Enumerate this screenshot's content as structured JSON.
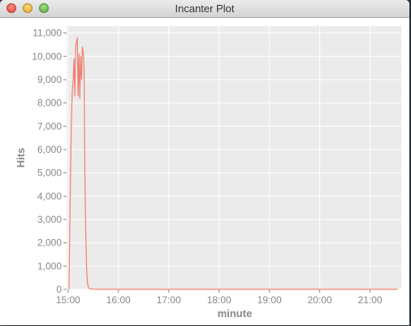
{
  "window": {
    "title": "Incanter Plot"
  },
  "colors": {
    "plot_background": "#ebebeb",
    "grid": "#ffffff",
    "series": "#f08070",
    "axis_text": "#888888"
  },
  "chart_data": {
    "type": "line",
    "xlabel": "minute",
    "ylabel": "Hits",
    "xlim": [
      14.97,
      21.62
    ],
    "ylim": [
      0,
      11300
    ],
    "xticks": [
      15,
      16,
      17,
      18,
      19,
      20,
      21
    ],
    "xtick_labels": [
      "15:00",
      "16:00",
      "17:00",
      "18:00",
      "19:00",
      "20:00",
      "21:00"
    ],
    "yticks": [
      0,
      1000,
      2000,
      3000,
      4000,
      5000,
      6000,
      7000,
      8000,
      9000,
      10000,
      11000
    ],
    "ytick_labels": [
      "0",
      "1,000",
      "2,000",
      "3,000",
      "4,000",
      "5,000",
      "6,000",
      "7,000",
      "8,000",
      "9,000",
      "10,000",
      "11,000"
    ],
    "grid": true,
    "series": [
      {
        "name": "Hits",
        "x": [
          15.017,
          15.05,
          15.067,
          15.083,
          15.1,
          15.117,
          15.133,
          15.15,
          15.167,
          15.183,
          15.2,
          15.217,
          15.233,
          15.25,
          15.267,
          15.283,
          15.3,
          15.317,
          15.333,
          15.35,
          15.367,
          15.383,
          15.4,
          15.417,
          15.433,
          15.45,
          15.5,
          15.6,
          16.0,
          17.0,
          18.0,
          19.0,
          20.0,
          21.0,
          21.55
        ],
        "y": [
          0,
          5300,
          7400,
          8500,
          9000,
          9900,
          8300,
          10400,
          10600,
          10800,
          8300,
          10100,
          8200,
          10000,
          9000,
          10400,
          10200,
          9500,
          5000,
          2500,
          900,
          300,
          120,
          60,
          30,
          20,
          10,
          5,
          3,
          2,
          2,
          2,
          2,
          2,
          2
        ]
      }
    ]
  }
}
